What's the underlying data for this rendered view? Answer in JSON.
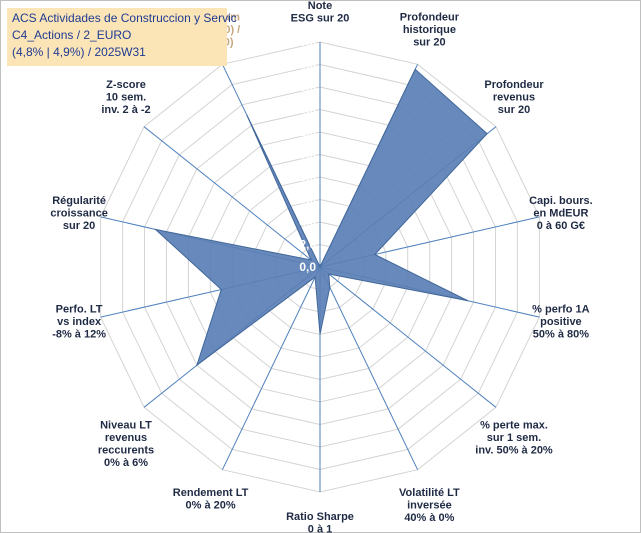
{
  "header": {
    "line1": "ACS Actividades de Construccion y Servic",
    "line2": "C4_Actions / 2_EURO",
    "line3": "(4,8% | 4,9%) / 2025W31"
  },
  "chart_data": {
    "type": "radar",
    "rmin": 0,
    "rmax": 20,
    "ticks": [
      "0,0",
      "2,0",
      "4,0",
      "6,0",
      "8,0",
      "10,0",
      "12,0",
      "14,0",
      "16,0",
      "18,0",
      "20,0"
    ],
    "series_color": "#5b7fb5",
    "axes": [
      {
        "label": [
          "Note",
          "ESG sur 20"
        ],
        "value": 0
      },
      {
        "label": [
          "Profondeur",
          "historique",
          "sur 20"
        ],
        "value": 19.5
      },
      {
        "label": [
          "Profondeur",
          "revenus",
          "sur 20"
        ],
        "value": 19.0
      },
      {
        "label": [
          "Capi. bours.",
          "en MdEUR",
          "0 à 60 G€"
        ],
        "value": 5.0
      },
      {
        "label": [
          "% perfo 1A",
          "positive",
          "50% à 80%"
        ],
        "value": 13.5
      },
      {
        "label": [
          "% perte max.",
          "sur 1 sem.",
          "inv. 50% à 20%"
        ],
        "value": 1.0
      },
      {
        "label": [
          "Volatilité LT",
          "inversée",
          "40% à 0%"
        ],
        "value": 2.0
      },
      {
        "label": [
          "Ratio Sharpe",
          "0 à 1"
        ],
        "value": 6.0
      },
      {
        "label": [
          "Rendement LT",
          "0% à 20%"
        ],
        "value": 1.0
      },
      {
        "label": [
          "Niveau LT",
          "revenus",
          "reccurents",
          "0% à 6%"
        ],
        "value": 14.0
      },
      {
        "label": [
          "Perfo. LT",
          "vs index",
          "-8% à 12%"
        ],
        "value": 9.0
      },
      {
        "label": [
          "Régularité",
          "croissance",
          "sur 20"
        ],
        "value": 15.0
      },
      {
        "label": [
          "Z-score",
          "10 sem.",
          "inv. 2 à -2"
        ],
        "value": 1.0
      },
      {
        "label": [
          "Momentum",
          "Achat (20) /",
          "Vente (0)"
        ],
        "value": 15.0
      }
    ]
  }
}
